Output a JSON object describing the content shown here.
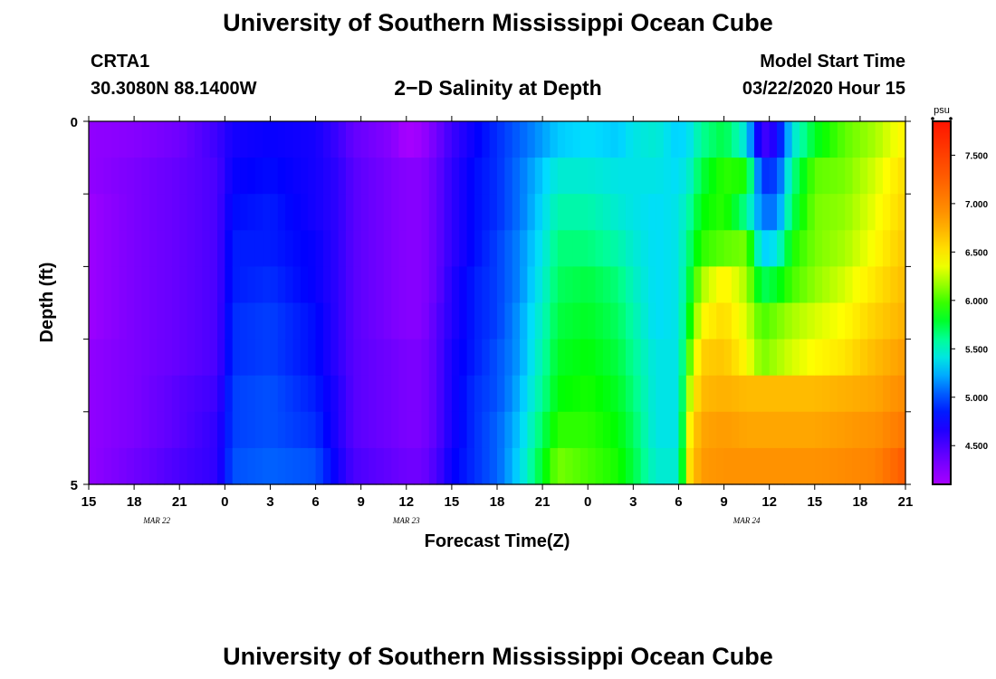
{
  "page": {
    "title_top": "University of Southern Mississippi Ocean Cube",
    "title_bottom": "University of Southern Mississippi Ocean Cube",
    "station_name": "CRTA1",
    "station_coords": "30.3080N 88.1400W",
    "plot_title": "2−D Salinity at Depth",
    "model_start_label": "Model Start Time",
    "model_start_value": "03/22/2020 Hour 15"
  },
  "chart_data": {
    "type": "heatmap",
    "title": "2−D Salinity at Depth",
    "xlabel": "Forecast Time(Z)",
    "ylabel": "Depth (ft)",
    "units": "psu",
    "x_tick_labels": [
      "15",
      "18",
      "21",
      "0",
      "3",
      "6",
      "9",
      "12",
      "15",
      "18",
      "21",
      "0",
      "3",
      "6",
      "9",
      "12",
      "15",
      "18",
      "21"
    ],
    "x_hours": [
      0,
      3,
      6,
      9,
      12,
      15,
      18,
      21,
      24,
      27,
      30,
      33,
      36,
      39,
      42,
      45,
      48,
      51,
      54
    ],
    "date_labels": [
      {
        "text": "MAR  22",
        "hour": 4.5
      },
      {
        "text": "MAR  23",
        "hour": 21
      },
      {
        "text": "MAR  24",
        "hour": 43.5
      }
    ],
    "xlim": [
      0,
      54
    ],
    "y_tick_labels": [
      "0",
      "5"
    ],
    "ylim": [
      0,
      5
    ],
    "depth_layers": [
      0.25,
      0.75,
      1.25,
      1.75,
      2.25,
      2.75,
      3.25,
      3.75,
      4.25,
      4.75
    ],
    "colorbar": {
      "label": "psu",
      "min": 4.1,
      "max": 7.85,
      "ticks": [
        4.5,
        5.0,
        5.5,
        6.0,
        6.5,
        7.0,
        7.5
      ],
      "tick_labels": [
        "4.500",
        "5.000",
        "5.500",
        "6.000",
        "6.500",
        "7.000",
        "7.500"
      ]
    },
    "keyframes": [
      {
        "hour": 0,
        "values": [
          4.2,
          4.2,
          4.15,
          4.15,
          4.15,
          4.15,
          4.2,
          4.2,
          4.2,
          4.2
        ]
      },
      {
        "hour": 3,
        "values": [
          4.25,
          4.3,
          4.3,
          4.3,
          4.3,
          4.3,
          4.3,
          4.3,
          4.3,
          4.35
        ]
      },
      {
        "hour": 6,
        "values": [
          4.35,
          4.4,
          4.4,
          4.4,
          4.4,
          4.4,
          4.4,
          4.45,
          4.45,
          4.5
        ]
      },
      {
        "hour": 8.5,
        "values": [
          4.55,
          4.5,
          4.5,
          4.5,
          4.5,
          4.5,
          4.5,
          4.55,
          4.6,
          4.6
        ]
      },
      {
        "hour": 9.5,
        "values": [
          4.7,
          4.75,
          4.8,
          4.85,
          4.85,
          4.9,
          4.9,
          4.95,
          4.95,
          5.0
        ]
      },
      {
        "hour": 12,
        "values": [
          4.75,
          4.8,
          4.85,
          4.85,
          4.9,
          4.95,
          4.95,
          5.0,
          5.0,
          5.05
        ]
      },
      {
        "hour": 15,
        "values": [
          4.7,
          4.7,
          4.7,
          4.75,
          4.75,
          4.8,
          4.8,
          4.85,
          4.9,
          5.0
        ]
      },
      {
        "hour": 16.5,
        "values": [
          4.55,
          4.6,
          4.6,
          4.6,
          4.6,
          4.6,
          4.6,
          4.65,
          4.65,
          4.7
        ]
      },
      {
        "hour": 17.5,
        "values": [
          4.4,
          4.45,
          4.45,
          4.45,
          4.45,
          4.45,
          4.45,
          4.45,
          4.45,
          4.5
        ]
      },
      {
        "hour": 20,
        "values": [
          4.25,
          4.3,
          4.3,
          4.3,
          4.3,
          4.3,
          4.35,
          4.35,
          4.35,
          4.4
        ]
      },
      {
        "hour": 21,
        "values": [
          4.1,
          4.25,
          4.25,
          4.25,
          4.25,
          4.25,
          4.3,
          4.3,
          4.3,
          4.35
        ]
      },
      {
        "hour": 22,
        "values": [
          4.15,
          4.25,
          4.25,
          4.25,
          4.25,
          4.25,
          4.3,
          4.3,
          4.3,
          4.35
        ]
      },
      {
        "hour": 23,
        "values": [
          4.35,
          4.4,
          4.4,
          4.4,
          4.4,
          4.45,
          4.45,
          4.45,
          4.45,
          4.5
        ]
      },
      {
        "hour": 24,
        "values": [
          4.55,
          4.6,
          4.6,
          4.6,
          4.65,
          4.65,
          4.7,
          4.7,
          4.7,
          4.75
        ]
      },
      {
        "hour": 25.5,
        "values": [
          4.75,
          4.8,
          4.8,
          4.8,
          4.85,
          4.85,
          4.85,
          4.9,
          4.9,
          4.9
        ]
      },
      {
        "hour": 27,
        "values": [
          4.9,
          4.9,
          4.9,
          4.95,
          4.95,
          4.95,
          5.0,
          5.0,
          5.05,
          5.05
        ]
      },
      {
        "hour": 28.5,
        "values": [
          5.05,
          5.1,
          5.1,
          5.15,
          5.15,
          5.2,
          5.2,
          5.25,
          5.3,
          5.35
        ]
      },
      {
        "hour": 30,
        "values": [
          5.2,
          5.3,
          5.35,
          5.4,
          5.45,
          5.5,
          5.55,
          5.6,
          5.7,
          5.8
        ]
      },
      {
        "hour": 31,
        "values": [
          5.3,
          5.45,
          5.55,
          5.65,
          5.7,
          5.75,
          5.8,
          5.85,
          5.95,
          6.1
        ]
      },
      {
        "hour": 33,
        "values": [
          5.35,
          5.45,
          5.55,
          5.65,
          5.75,
          5.8,
          5.85,
          5.9,
          5.95,
          6.0
        ]
      },
      {
        "hour": 35,
        "values": [
          5.3,
          5.4,
          5.45,
          5.55,
          5.65,
          5.7,
          5.75,
          5.8,
          5.85,
          5.9
        ]
      },
      {
        "hour": 36,
        "values": [
          5.4,
          5.4,
          5.4,
          5.45,
          5.5,
          5.55,
          5.6,
          5.65,
          5.7,
          5.75
        ]
      },
      {
        "hour": 37.5,
        "values": [
          5.45,
          5.4,
          5.35,
          5.35,
          5.35,
          5.35,
          5.4,
          5.4,
          5.4,
          5.45
        ]
      },
      {
        "hour": 39,
        "values": [
          5.3,
          5.35,
          5.4,
          5.4,
          5.4,
          5.4,
          5.4,
          5.4,
          5.4,
          5.45
        ]
      },
      {
        "hour": 39.8,
        "values": [
          5.4,
          5.5,
          5.6,
          5.7,
          5.8,
          5.9,
          6.1,
          6.3,
          6.5,
          6.6
        ]
      },
      {
        "hour": 40.5,
        "values": [
          5.6,
          5.75,
          5.85,
          5.95,
          6.2,
          6.4,
          6.6,
          6.7,
          6.8,
          6.85
        ]
      },
      {
        "hour": 42,
        "values": [
          5.75,
          5.95,
          5.95,
          6.05,
          6.45,
          6.55,
          6.65,
          6.75,
          6.85,
          6.9
        ]
      },
      {
        "hour": 43.5,
        "values": [
          5.4,
          5.9,
          5.6,
          6.1,
          6.2,
          6.3,
          6.4,
          6.7,
          6.8,
          6.9
        ]
      },
      {
        "hour": 44.5,
        "values": [
          4.5,
          4.9,
          5.1,
          5.3,
          5.7,
          6.0,
          6.1,
          6.7,
          6.8,
          6.9
        ]
      },
      {
        "hour": 45.5,
        "values": [
          4.7,
          4.95,
          5.1,
          5.4,
          5.8,
          6.1,
          6.2,
          6.7,
          6.8,
          6.9
        ]
      },
      {
        "hour": 46.5,
        "values": [
          5.4,
          5.6,
          5.7,
          5.9,
          6.0,
          6.2,
          6.3,
          6.7,
          6.8,
          6.9
        ]
      },
      {
        "hour": 48,
        "values": [
          5.8,
          6.05,
          6.1,
          6.1,
          6.15,
          6.3,
          6.4,
          6.7,
          6.8,
          6.9
        ]
      },
      {
        "hour": 50,
        "values": [
          6.05,
          6.1,
          6.15,
          6.2,
          6.3,
          6.4,
          6.5,
          6.75,
          6.85,
          6.95
        ]
      },
      {
        "hour": 52,
        "values": [
          6.2,
          6.3,
          6.35,
          6.4,
          6.5,
          6.6,
          6.7,
          6.8,
          6.9,
          7.0
        ]
      },
      {
        "hour": 54,
        "values": [
          6.45,
          6.55,
          6.6,
          6.65,
          6.7,
          6.75,
          6.85,
          6.95,
          7.1,
          7.3
        ]
      }
    ]
  }
}
